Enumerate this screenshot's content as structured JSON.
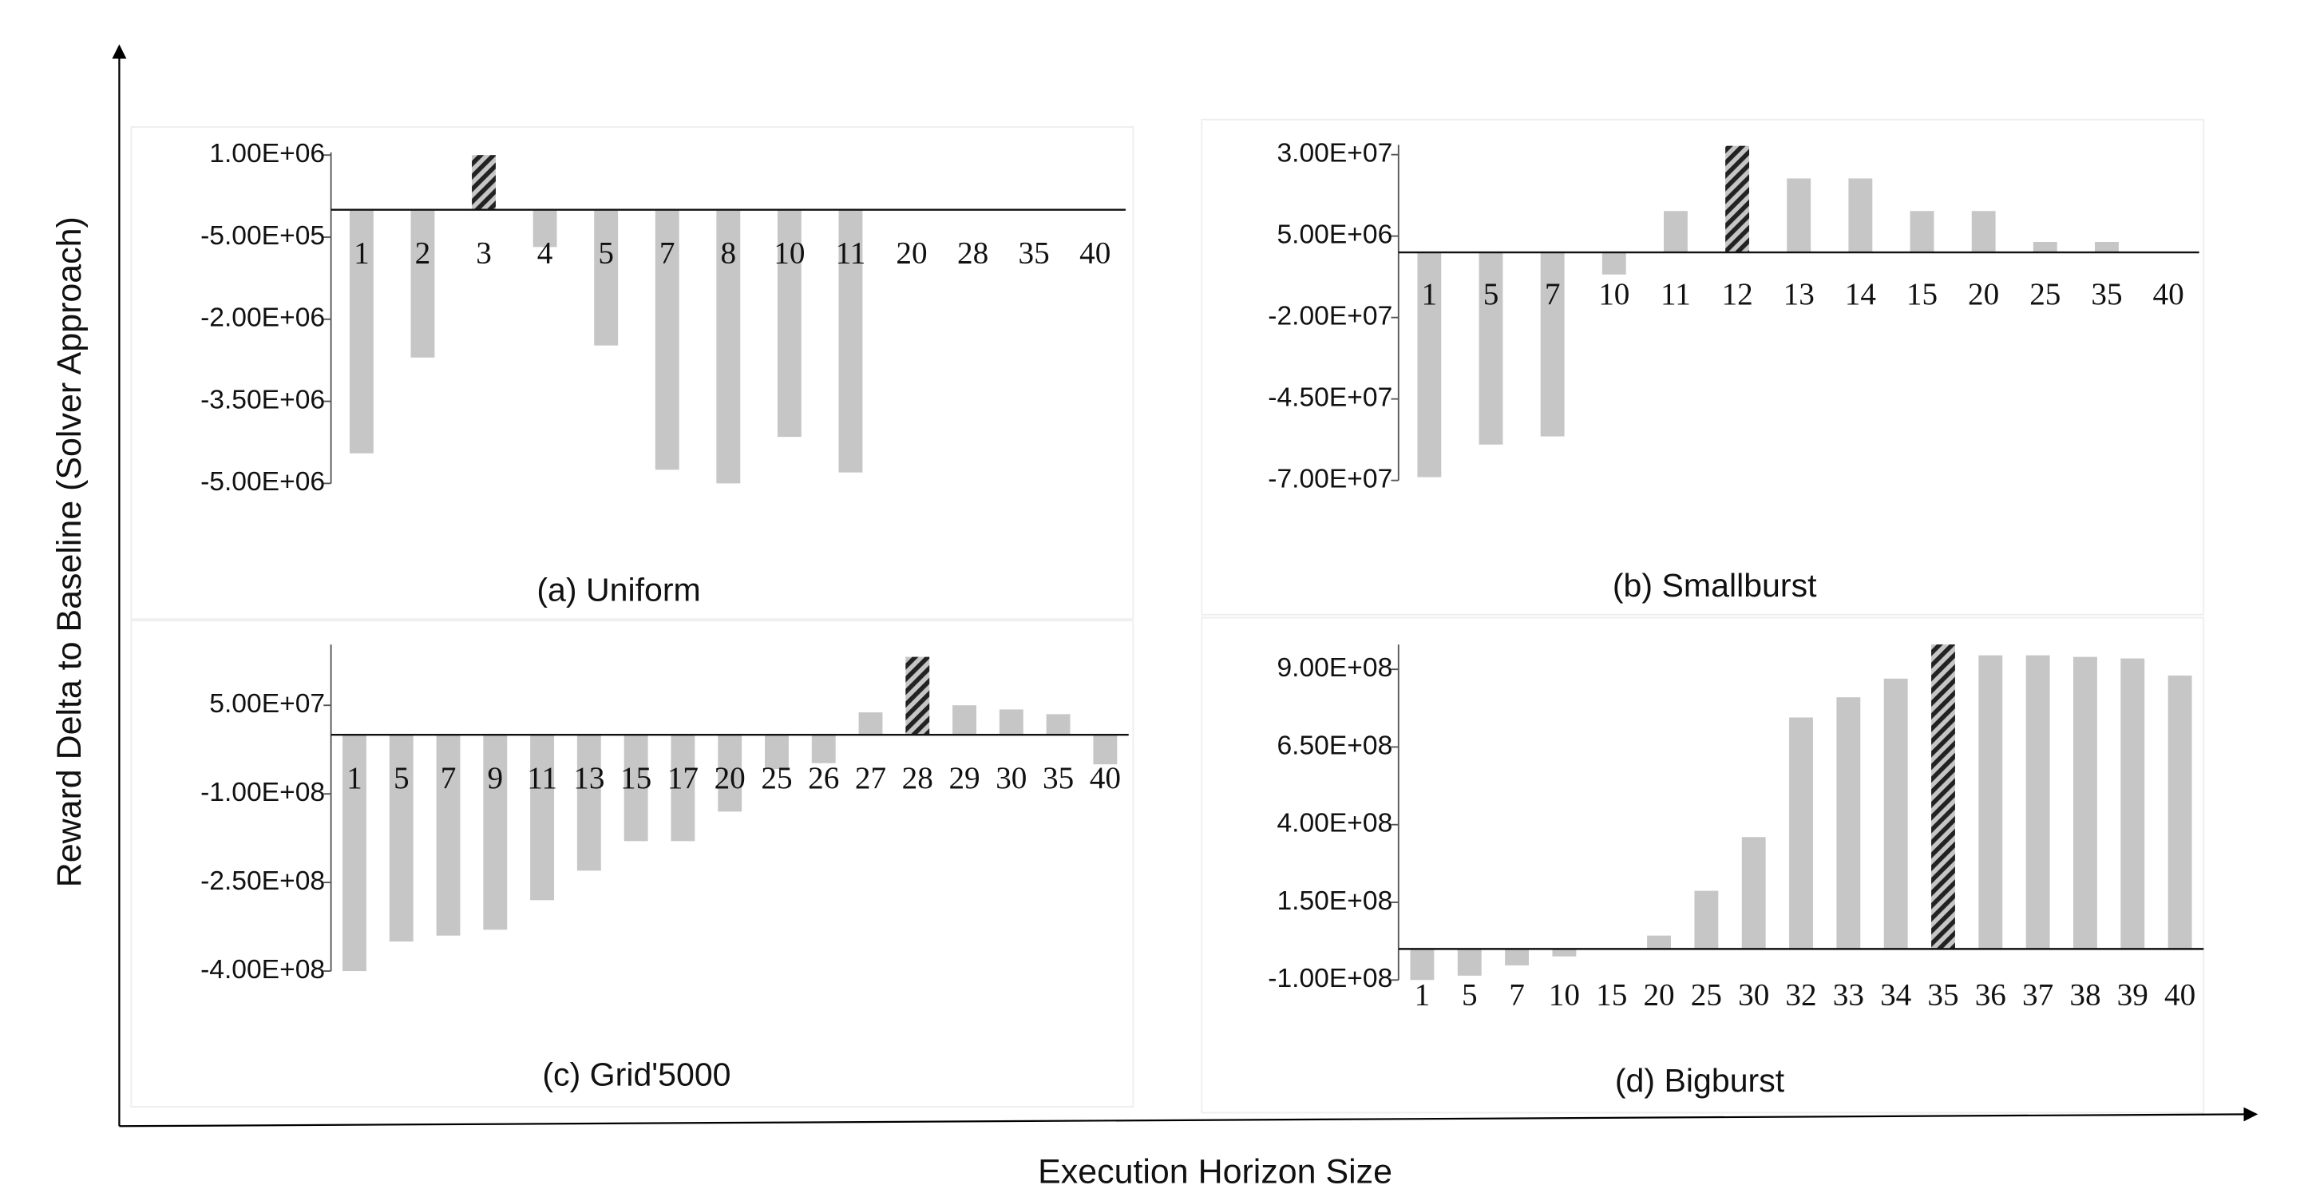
{
  "figure": {
    "ylabel": "Reward Delta to Baseline (Solver Approach)",
    "xlabel": "Execution Horizon Size"
  },
  "chart_data": [
    {
      "type": "bar",
      "title": "(a) Uniform",
      "color": "#c6c6c6",
      "hatched_index": 2,
      "categories": [
        1,
        2,
        3,
        4,
        5,
        7,
        8,
        10,
        11,
        20,
        28,
        35,
        40
      ],
      "values": [
        -4450000,
        -2700000,
        1000000,
        -680000,
        -2480000,
        -4750000,
        -5000000,
        -4150000,
        -4800000,
        0,
        0,
        0,
        0
      ],
      "ylim": [
        -5000000,
        1050000
      ],
      "yticks": [
        {
          "value": 1000000,
          "label": "1.00E+06"
        },
        {
          "value": -500000,
          "label": "-5.00E+05"
        },
        {
          "value": -2000000,
          "label": "-2.00E+06"
        },
        {
          "value": -3500000,
          "label": "-3.50E+06"
        },
        {
          "value": -5000000,
          "label": "-5.00E+06"
        }
      ]
    },
    {
      "type": "bar",
      "title": "(b) Smallburst",
      "color": "#c6c6c6",
      "hatched_index": 5,
      "categories": [
        1,
        5,
        7,
        10,
        11,
        12,
        13,
        14,
        15,
        20,
        25,
        35,
        40
      ],
      "values": [
        -69000000,
        -59000000,
        -56500000,
        -6800000,
        12700000,
        32700000,
        22700000,
        22700000,
        12700000,
        12700000,
        3200000,
        3200000,
        0
      ],
      "ylim": [
        -70000000,
        33000000
      ],
      "yticks": [
        {
          "value": 30000000,
          "label": "3.00E+07"
        },
        {
          "value": 5000000,
          "label": "5.00E+06"
        },
        {
          "value": -20000000,
          "label": "-2.00E+07"
        },
        {
          "value": -45000000,
          "label": "-4.50E+07"
        },
        {
          "value": -70000000,
          "label": "-7.00E+07"
        }
      ]
    },
    {
      "type": "bar",
      "title": "(c)  Grid'5000",
      "color": "#c6c6c6",
      "hatched_index": 12,
      "categories": [
        1,
        5,
        7,
        9,
        11,
        13,
        15,
        17,
        20,
        25,
        26,
        27,
        28,
        29,
        30,
        35,
        40
      ],
      "values": [
        -400000000,
        -350000000,
        -340000000,
        -330000000,
        -280000000,
        -230000000,
        -180000000,
        -180000000,
        -130000000,
        -58000000,
        -48000000,
        38000000,
        132000000,
        50000000,
        43000000,
        35000000,
        -50000000
      ],
      "ylim": [
        -400000000,
        153000000
      ],
      "yticks": [
        {
          "value": 50000000,
          "label": "5.00E+07"
        },
        {
          "value": -100000000,
          "label": "-1.00E+08"
        },
        {
          "value": -250000000,
          "label": "-2.50E+08"
        },
        {
          "value": -400000000,
          "label": "-4.00E+08"
        }
      ]
    },
    {
      "type": "bar",
      "title": "(d) Bigburst",
      "color": "#c6c6c6",
      "hatched_index": 11,
      "categories": [
        1,
        5,
        7,
        10,
        15,
        20,
        25,
        30,
        32,
        33,
        34,
        35,
        36,
        37,
        38,
        39,
        40
      ],
      "values": [
        -100000000,
        -86000000,
        -53000000,
        -24000000,
        0,
        43000000,
        187000000,
        360000000,
        745000000,
        810000000,
        870000000,
        980000000,
        945000000,
        945000000,
        940000000,
        935000000,
        880000000
      ],
      "ylim": [
        -100000000,
        980000000
      ],
      "yticks": [
        {
          "value": 900000000,
          "label": "9.00E+08"
        },
        {
          "value": 650000000,
          "label": "6.50E+08"
        },
        {
          "value": 400000000,
          "label": "4.00E+08"
        },
        {
          "value": 150000000,
          "label": "1.50E+08"
        },
        {
          "value": -100000000,
          "label": "-1.00E+08"
        }
      ]
    }
  ]
}
